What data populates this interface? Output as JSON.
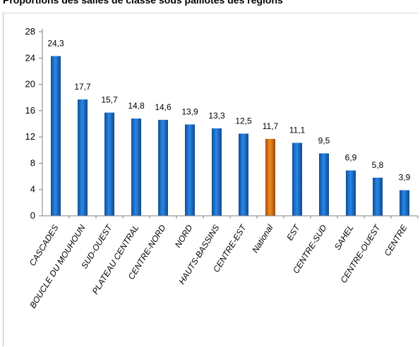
{
  "chart_data": {
    "type": "bar",
    "title": "Proportions des salles de classe sous paillotes des régions",
    "xlabel": "",
    "ylabel": "",
    "ylim": [
      0,
      28
    ],
    "yticks": [
      0,
      4,
      8,
      12,
      16,
      20,
      24,
      28
    ],
    "grid": false,
    "legend": "none",
    "categories": [
      "CASCADES",
      "BOUCLE DU MOUHOUN",
      "SUD-OUEST",
      "PLATEAU CENTRAL",
      "CENTRE-NORD",
      "NORD",
      "HAUTS-BASSINS",
      "CENTRE-EST",
      "National",
      "EST",
      "CENTRE-SUD",
      "SAHEL",
      "CENTRE-OUEST",
      "CENTRE"
    ],
    "values": [
      24.3,
      17.7,
      15.7,
      14.8,
      14.6,
      13.9,
      13.3,
      12.5,
      11.7,
      11.1,
      9.5,
      6.9,
      5.8,
      3.9
    ],
    "value_labels": [
      "24,3",
      "17,7",
      "15,7",
      "14,8",
      "14,6",
      "13,9",
      "13,3",
      "12,5",
      "11,7",
      "11,1",
      "9,5",
      "6,9",
      "5,8",
      "3,9"
    ],
    "colors": {
      "bar": "#1f74d0",
      "bar_dark": "#0e4f96",
      "bar_highlight": "#e87a16",
      "bar_highlight_dark": "#a8500a",
      "axis": "#7f7f7f"
    },
    "highlight_category": "National"
  }
}
